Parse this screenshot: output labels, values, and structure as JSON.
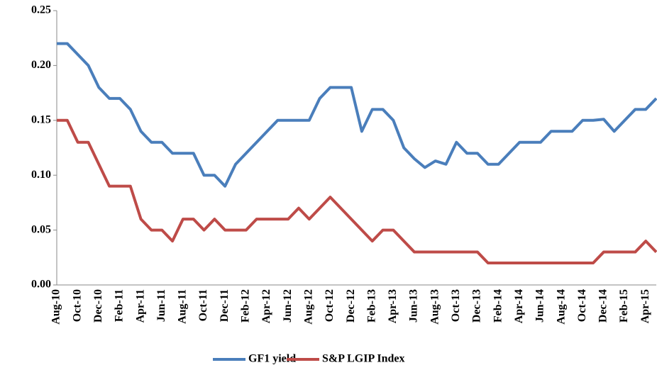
{
  "chart_data": {
    "type": "line",
    "categories": [
      "Aug-10",
      null,
      "Oct-10",
      null,
      "Dec-10",
      null,
      "Feb-11",
      null,
      "Apr-11",
      null,
      "Jun-11",
      null,
      "Aug-11",
      null,
      "Oct-11",
      null,
      "Dec-11",
      null,
      "Feb-12",
      null,
      "Apr-12",
      null,
      "Jun-12",
      null,
      "Aug-12",
      null,
      "Oct-12",
      null,
      "Dec-12",
      null,
      "Feb-13",
      null,
      "Apr-13",
      null,
      "Jun-13",
      null,
      "Aug-13",
      null,
      "Oct-13",
      null,
      "Dec-13",
      null,
      "Feb-14",
      null,
      "Apr-14",
      null,
      "Jun-14",
      null,
      "Aug-14",
      null,
      "Oct-14",
      null,
      "Dec-14",
      null,
      "Feb-15",
      null,
      "Apr-15",
      null
    ],
    "series": [
      {
        "name": "GF1 yield",
        "color": "#4a7ebb",
        "values": [
          0.22,
          0.22,
          0.21,
          0.2,
          0.18,
          0.17,
          0.17,
          0.16,
          0.14,
          0.13,
          0.13,
          0.12,
          0.12,
          0.12,
          0.1,
          0.1,
          0.09,
          0.11,
          0.12,
          0.13,
          0.14,
          0.15,
          0.15,
          0.15,
          0.15,
          0.17,
          0.18,
          0.18,
          0.18,
          0.14,
          0.16,
          0.16,
          0.15,
          0.125,
          0.115,
          0.107,
          0.113,
          0.11,
          0.13,
          0.12,
          0.12,
          0.11,
          0.11,
          0.12,
          0.13,
          0.13,
          0.13,
          0.14,
          0.14,
          0.14,
          0.15,
          0.15,
          0.151,
          0.14,
          0.15,
          0.16,
          0.16,
          0.17
        ]
      },
      {
        "name": "S&P LGIP Index",
        "color": "#be4b48",
        "values": [
          0.15,
          0.15,
          0.13,
          0.13,
          0.11,
          0.09,
          0.09,
          0.09,
          0.06,
          0.05,
          0.05,
          0.04,
          0.06,
          0.06,
          0.05,
          0.06,
          0.05,
          0.05,
          0.05,
          0.06,
          0.06,
          0.06,
          0.06,
          0.07,
          0.06,
          0.07,
          0.08,
          0.07,
          0.06,
          0.05,
          0.04,
          0.05,
          0.05,
          0.04,
          0.03,
          0.03,
          0.03,
          0.03,
          0.03,
          0.03,
          0.03,
          0.02,
          0.02,
          0.02,
          0.02,
          0.02,
          0.02,
          0.02,
          0.02,
          0.02,
          0.02,
          0.02,
          0.03,
          0.03,
          0.03,
          0.03,
          0.04,
          0.03
        ]
      }
    ],
    "ylim": [
      0,
      0.25
    ],
    "yticks": [
      {
        "value": 0,
        "label": "0.00"
      },
      0.05,
      {
        "value": 0.1,
        "label": "0.10"
      },
      0.15,
      {
        "value": 0.2,
        "label": "0.20"
      },
      0.25
    ],
    "grid": false,
    "legend": "bottom"
  }
}
